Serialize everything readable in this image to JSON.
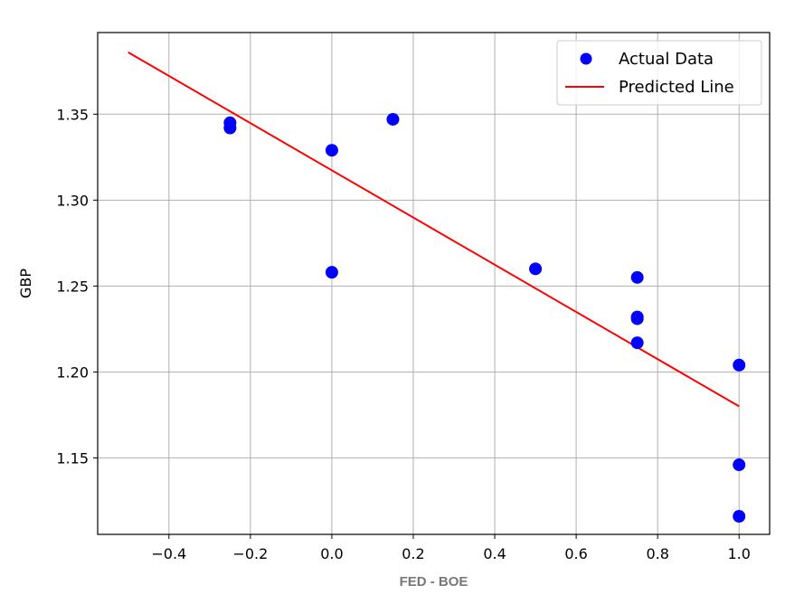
{
  "chart_data": {
    "type": "scatter",
    "xlabel": "FED - BOE",
    "ylabel": "GBP",
    "xlim": [
      -0.575,
      1.075
    ],
    "ylim": [
      1.1055,
      1.3975
    ],
    "x_ticks": [
      -0.4,
      -0.2,
      0.0,
      0.2,
      0.4,
      0.6,
      0.8,
      1.0
    ],
    "x_tick_labels": [
      "−0.4",
      "−0.2",
      "0.0",
      "0.2",
      "0.4",
      "0.6",
      "0.8",
      "1.0"
    ],
    "y_ticks": [
      1.15,
      1.2,
      1.25,
      1.3,
      1.35
    ],
    "y_tick_labels": [
      "1.15",
      "1.20",
      "1.25",
      "1.30",
      "1.35"
    ],
    "grid": true,
    "legend_position": "top-right",
    "series": [
      {
        "name": "Actual Data",
        "kind": "scatter",
        "color": "#0000ff",
        "points": [
          {
            "x": -0.25,
            "y": 1.345
          },
          {
            "x": -0.25,
            "y": 1.342
          },
          {
            "x": 0.0,
            "y": 1.329
          },
          {
            "x": 0.0,
            "y": 1.258
          },
          {
            "x": 0.15,
            "y": 1.347
          },
          {
            "x": 0.5,
            "y": 1.26
          },
          {
            "x": 0.75,
            "y": 1.255
          },
          {
            "x": 0.75,
            "y": 1.232
          },
          {
            "x": 0.75,
            "y": 1.231
          },
          {
            "x": 0.75,
            "y": 1.217
          },
          {
            "x": 1.0,
            "y": 1.204
          },
          {
            "x": 1.0,
            "y": 1.146
          },
          {
            "x": 1.0,
            "y": 1.116
          }
        ]
      },
      {
        "name": "Predicted Line",
        "kind": "line",
        "color": "#ff0000",
        "points": [
          {
            "x": -0.5,
            "y": 1.386
          },
          {
            "x": 1.0,
            "y": 1.18
          }
        ]
      }
    ]
  }
}
